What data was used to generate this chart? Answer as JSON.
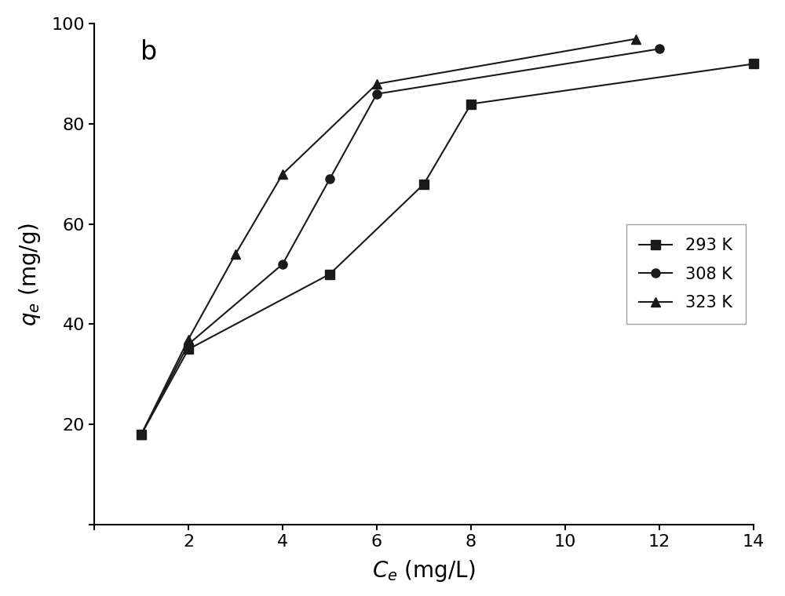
{
  "series": [
    {
      "label": "293 K",
      "x": [
        1,
        2,
        5,
        7,
        8,
        14
      ],
      "y": [
        18,
        35,
        50,
        68,
        84,
        92
      ],
      "marker": "s",
      "color": "#1a1a1a"
    },
    {
      "label": "308 K",
      "x": [
        1,
        2,
        4,
        5,
        6,
        12
      ],
      "y": [
        18,
        36,
        52,
        69,
        86,
        95
      ],
      "marker": "o",
      "color": "#1a1a1a"
    },
    {
      "label": "323 K",
      "x": [
        1,
        2,
        3,
        4,
        6,
        11.5
      ],
      "y": [
        18,
        37,
        54,
        70,
        88,
        97
      ],
      "marker": "^",
      "color": "#1a1a1a"
    }
  ],
  "xlabel": "$C_e$ (mg/L)",
  "ylabel": "$q_e$ (mg/g)",
  "title_label": "b",
  "xlim": [
    0,
    14
  ],
  "ylim": [
    0,
    100
  ],
  "xticks": [
    0,
    2,
    4,
    6,
    8,
    10,
    12,
    14
  ],
  "yticks": [
    0,
    20,
    40,
    60,
    80,
    100
  ],
  "marker_size": 8,
  "linewidth": 1.5,
  "background_color": "#ffffff",
  "axis_color": "#000000",
  "tick_labelsize": 16,
  "axis_labelsize": 20,
  "legend_fontsize": 15
}
